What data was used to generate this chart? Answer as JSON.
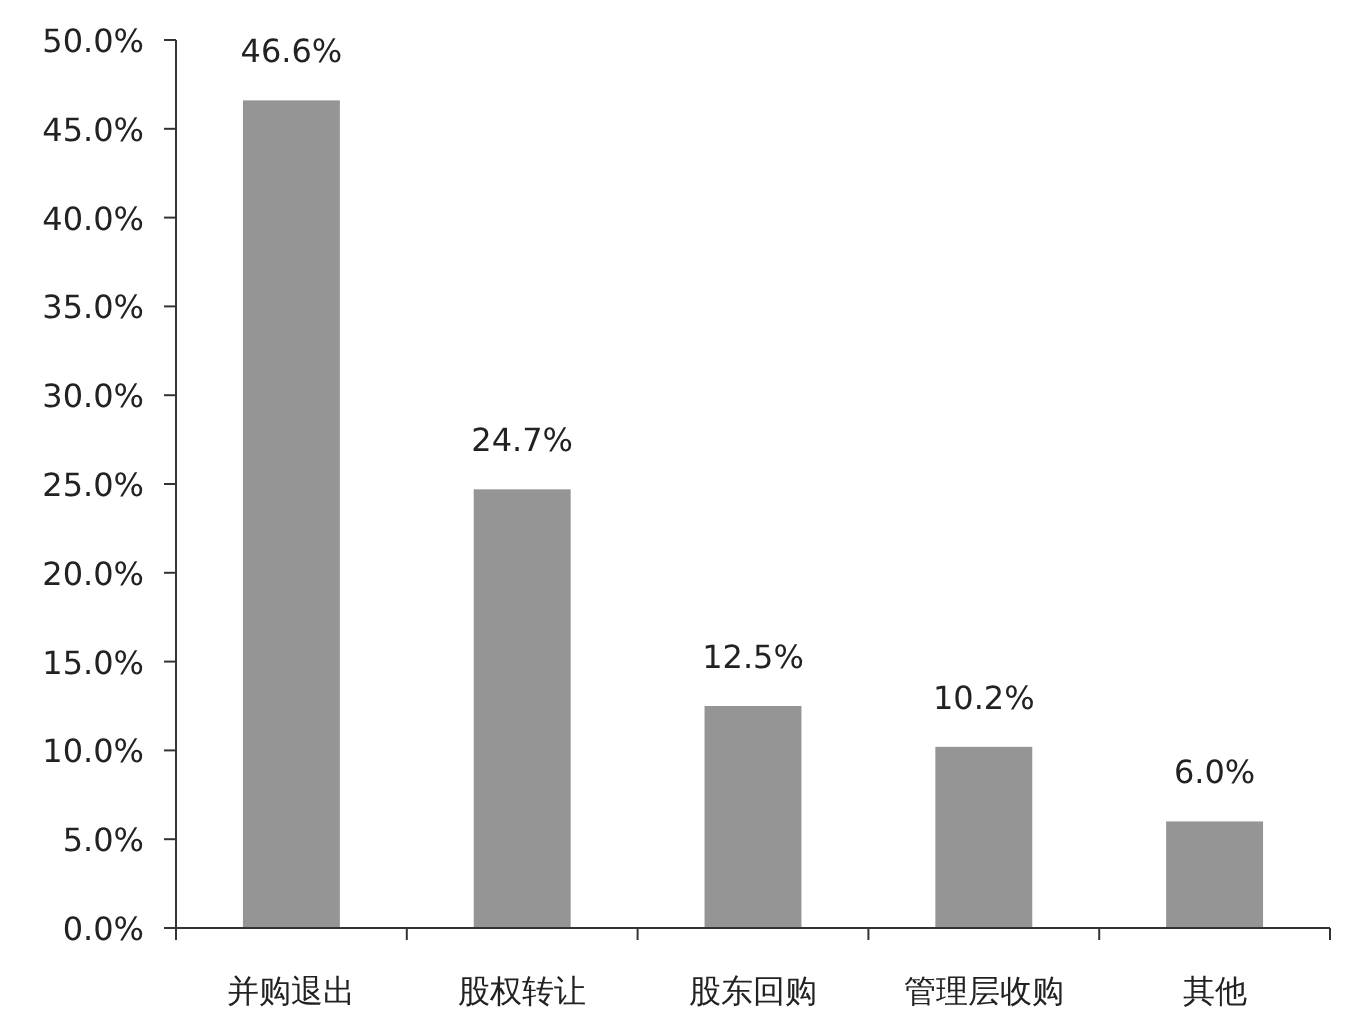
{
  "chart_data": {
    "type": "bar",
    "categories": [
      "并购退出",
      "股权转让",
      "股东回购",
      "管理层收购",
      "其他"
    ],
    "values": [
      46.6,
      24.7,
      12.5,
      10.2,
      6.0
    ],
    "value_labels": [
      "46.6%",
      "24.7%",
      "12.5%",
      "10.2%",
      "6.0%"
    ],
    "color": "#959595",
    "grid": false,
    "ylim": [
      0,
      50
    ],
    "yticks": [
      {
        "value": 0,
        "label": "0.0%"
      },
      {
        "value": 5,
        "label": "5.0%"
      },
      {
        "value": 10,
        "label": "10.0%"
      },
      {
        "value": 15,
        "label": "15.0%"
      },
      {
        "value": 20,
        "label": "20.0%"
      },
      {
        "value": 25,
        "label": "25.0%"
      },
      {
        "value": 30,
        "label": "30.0%"
      },
      {
        "value": 35,
        "label": "35.0%"
      },
      {
        "value": 40,
        "label": "40.0%"
      },
      {
        "value": 45,
        "label": "45.0%"
      },
      {
        "value": 50,
        "label": "50.0%"
      }
    ]
  }
}
